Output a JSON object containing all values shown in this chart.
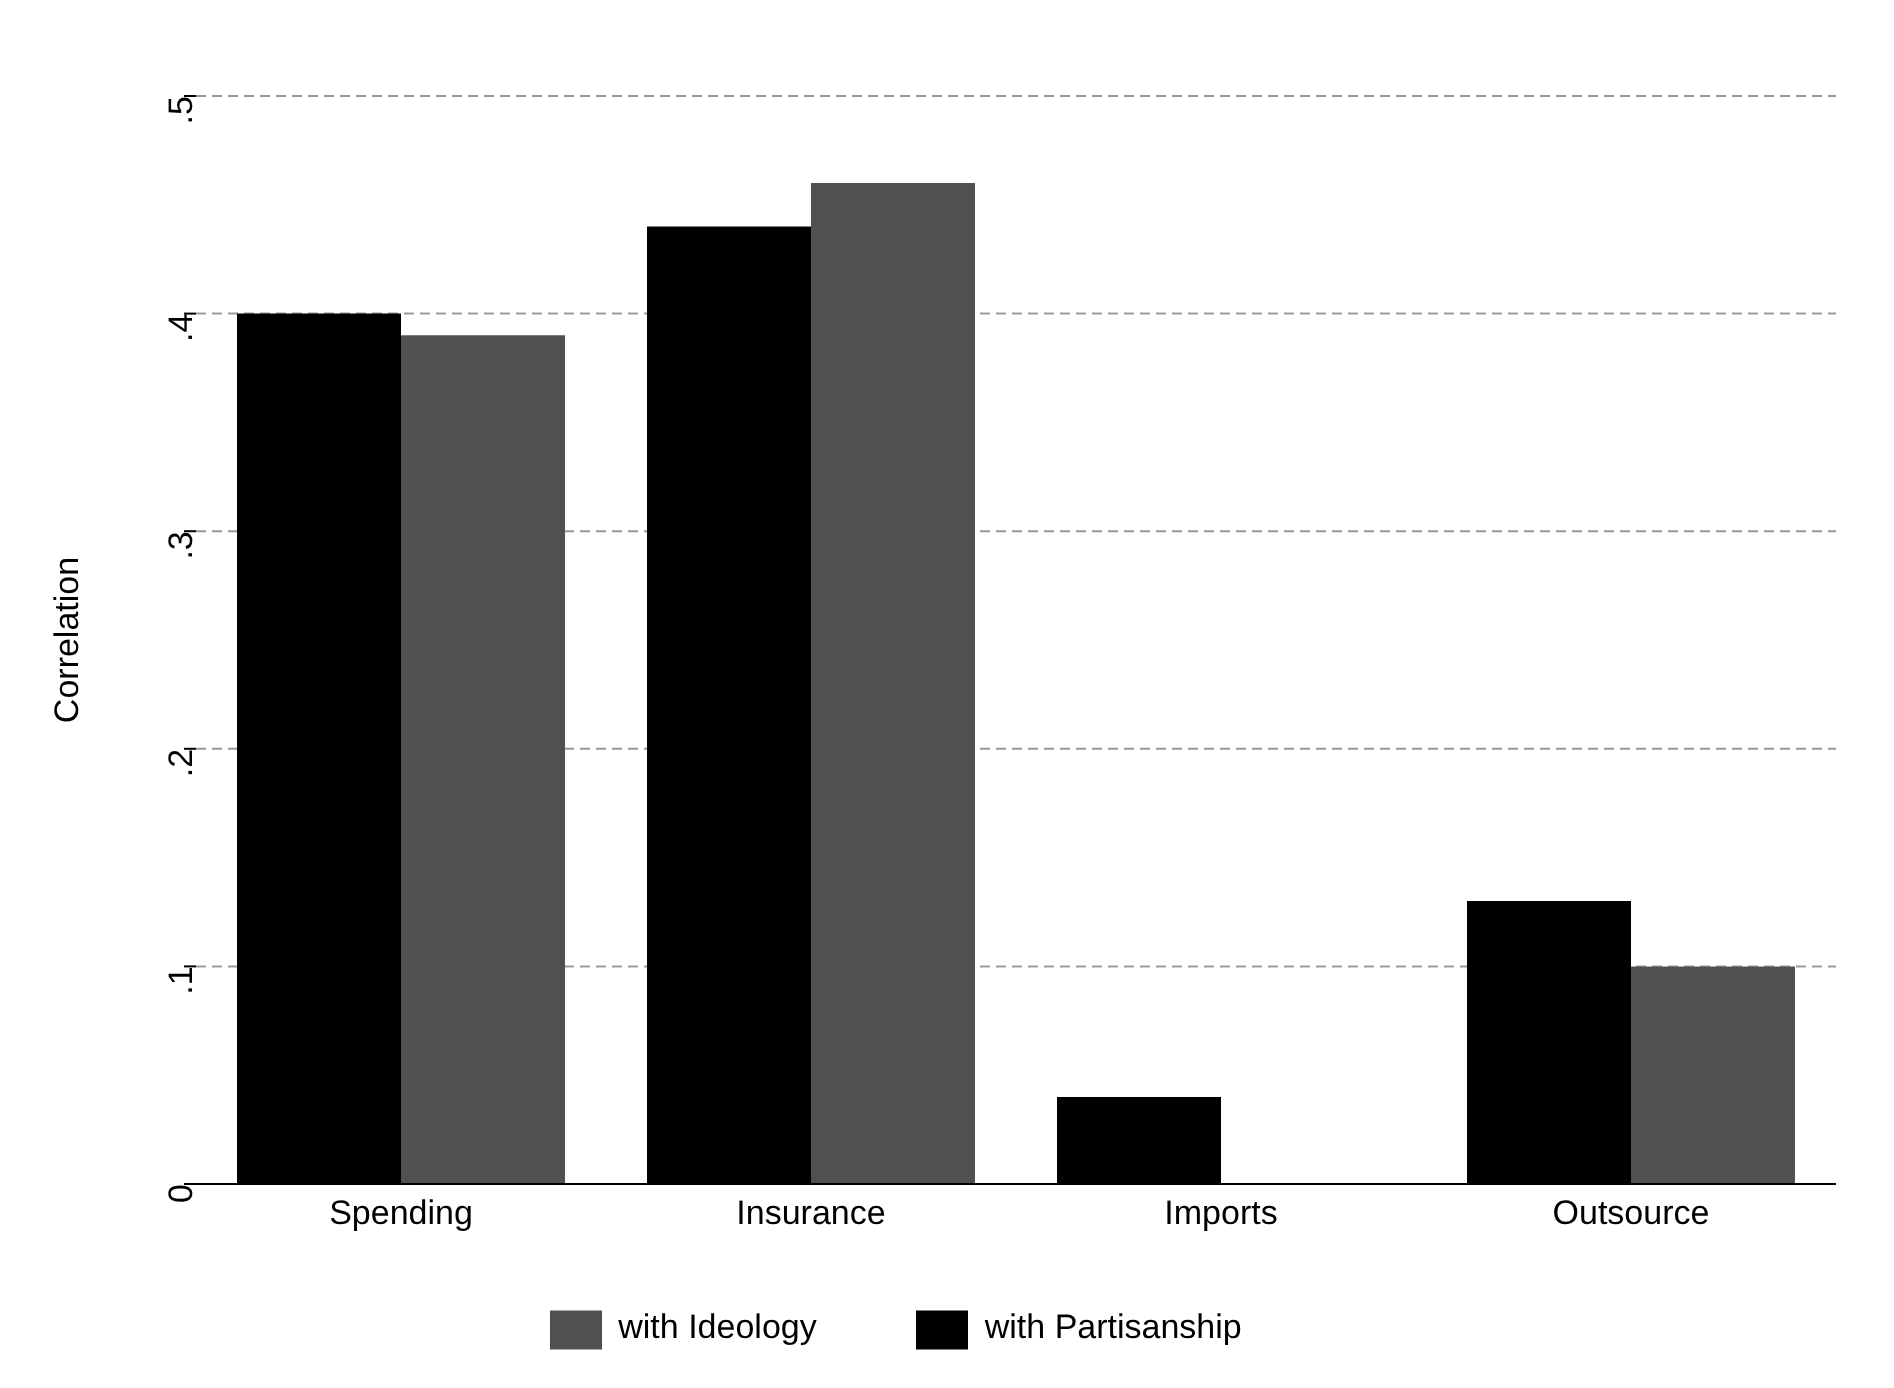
{
  "chart_data": {
    "type": "bar",
    "ylabel": "Correlation",
    "categories": [
      "Spending",
      "Insurance",
      "Imports",
      "Outsource"
    ],
    "series": [
      {
        "name": "with Partisanship",
        "color": "#000000",
        "values": [
          0.4,
          0.44,
          0.04,
          0.13
        ]
      },
      {
        "name": "with Ideology",
        "color": "#505050",
        "values": [
          0.39,
          0.46,
          0,
          0.1
        ]
      }
    ],
    "ylim": [
      0,
      0.5
    ],
    "yticks": [
      {
        "value": 0,
        "label": "0"
      },
      {
        "value": 0.1,
        "label": ".1"
      },
      {
        "value": 0.2,
        "label": ".2"
      },
      {
        "value": 0.3,
        "label": ".3"
      },
      {
        "value": 0.4,
        "label": ".4"
      },
      {
        "value": 0.5,
        "label": ".5"
      }
    ],
    "grid": "y",
    "legend": "bottom"
  }
}
